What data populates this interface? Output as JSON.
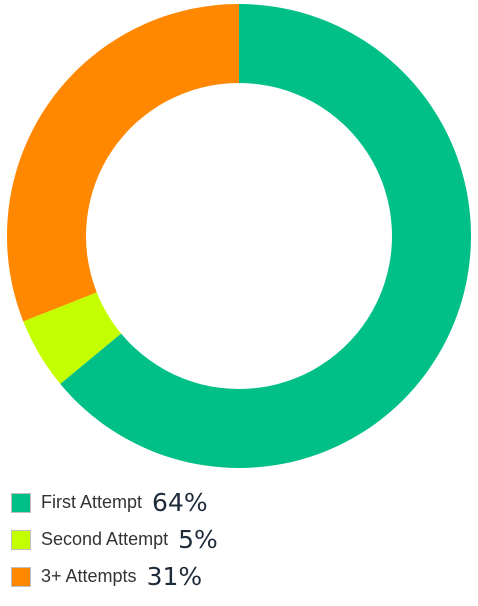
{
  "chart_data": {
    "type": "pie",
    "style": "donut",
    "title": "",
    "series": [
      {
        "name": "First Attempt",
        "value": 64,
        "value_label": "64%",
        "color": "#00c087"
      },
      {
        "name": "Second Attempt",
        "value": 5,
        "value_label": "5%",
        "color": "#c3ff00"
      },
      {
        "name": "3+ Attempts",
        "value": 31,
        "value_label": "31%",
        "color": "#ff8800"
      }
    ],
    "legend": {
      "position": "bottom-left"
    }
  }
}
